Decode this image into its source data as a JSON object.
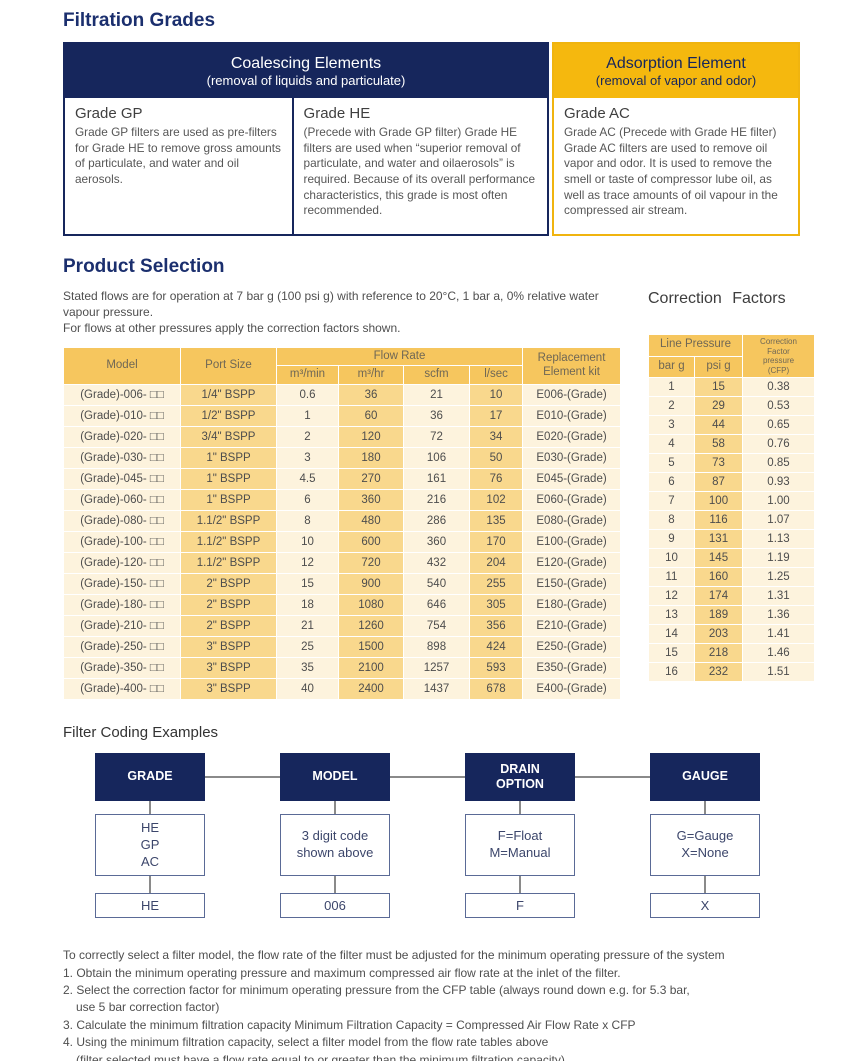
{
  "titles": {
    "filtration": "Filtration Grades",
    "product_selection": "Product Selection",
    "correction_factors": "Correction Factors",
    "filter_coding": "Filter Coding Examples"
  },
  "colors": {
    "navy": "#16265c",
    "gold": "#f5b80e",
    "table_header_gold": "#f6c65e",
    "stripe_light": "#fdf3dd",
    "stripe_gold": "#f9d88d"
  },
  "grades_table": {
    "coalescing": {
      "title": "Coalescing Elements",
      "subtitle": "(removal of liquids and particulate)"
    },
    "adsorption": {
      "title": "Adsorption Element",
      "subtitle": "(removal of vapor and odor)"
    },
    "cells": [
      {
        "name": "Grade GP",
        "text": "Grade GP filters are used as pre-filters for Grade HE to remove gross amounts of particulate, and water and oil aerosols."
      },
      {
        "name": "Grade HE",
        "text": "(Precede with Grade GP filter) Grade HE filters are used when “superior removal of particulate, and water and oilaerosols” is required. Because of its overall performance characteristics, this grade is most often recommended."
      },
      {
        "name": "Grade AC",
        "text": "Grade AC (Precede with Grade HE filter) Grade AC filters are used to remove oil vapor and odor. It is used to remove the smell or taste of compressor lube oil, as well as trace amounts of oil vapour in the compressed air stream."
      }
    ]
  },
  "product_selection": {
    "intro": "Stated flows are for operation at 7 bar g (100 psi g) with reference to 20°C, 1 bar a, 0% relative water vapour pressure.",
    "intro2": "For flows at other pressures apply the correction factors shown."
  },
  "flow_table": {
    "col_model": "Model",
    "col_port": "Port Size",
    "col_flow": "Flow Rate",
    "col_replacement": "Replacement\nElement kit",
    "flow_units": [
      "m³/min",
      "m³/hr",
      "scfm",
      "l/sec"
    ],
    "rows": [
      [
        "(Grade)-006- □□",
        "1/4\" BSPP",
        "0.6",
        "36",
        "21",
        "10",
        "E006-(Grade)"
      ],
      [
        "(Grade)-010- □□",
        "1/2\" BSPP",
        "1",
        "60",
        "36",
        "17",
        "E010-(Grade)"
      ],
      [
        "(Grade)-020- □□",
        "3/4\" BSPP",
        "2",
        "120",
        "72",
        "34",
        "E020-(Grade)"
      ],
      [
        "(Grade)-030- □□",
        "1\" BSPP",
        "3",
        "180",
        "106",
        "50",
        "E030-(Grade)"
      ],
      [
        "(Grade)-045- □□",
        "1\" BSPP",
        "4.5",
        "270",
        "161",
        "76",
        "E045-(Grade)"
      ],
      [
        "(Grade)-060- □□",
        "1\" BSPP",
        "6",
        "360",
        "216",
        "102",
        "E060-(Grade)"
      ],
      [
        "(Grade)-080- □□",
        "1.1/2\" BSPP",
        "8",
        "480",
        "286",
        "135",
        "E080-(Grade)"
      ],
      [
        "(Grade)-100- □□",
        "1.1/2\" BSPP",
        "10",
        "600",
        "360",
        "170",
        "E100-(Grade)"
      ],
      [
        "(Grade)-120- □□",
        "1.1/2\" BSPP",
        "12",
        "720",
        "432",
        "204",
        "E120-(Grade)"
      ],
      [
        "(Grade)-150- □□",
        "2\" BSPP",
        "15",
        "900",
        "540",
        "255",
        "E150-(Grade)"
      ],
      [
        "(Grade)-180- □□",
        "2\" BSPP",
        "18",
        "1080",
        "646",
        "305",
        "E180-(Grade)"
      ],
      [
        "(Grade)-210- □□",
        "2\" BSPP",
        "21",
        "1260",
        "754",
        "356",
        "E210-(Grade)"
      ],
      [
        "(Grade)-250- □□",
        "3\" BSPP",
        "25",
        "1500",
        "898",
        "424",
        "E250-(Grade)"
      ],
      [
        "(Grade)-350- □□",
        "3\" BSPP",
        "35",
        "2100",
        "1257",
        "593",
        "E350-(Grade)"
      ],
      [
        "(Grade)-400- □□",
        "3\" BSPP",
        "40",
        "2400",
        "1437",
        "678",
        "E400-(Grade)"
      ]
    ]
  },
  "correction_table": {
    "col_line_pressure": "Line Pressure",
    "col_cfp": "Correction\nFactor\npressure\n(CFP)",
    "sub_cols": [
      "bar g",
      "psi g"
    ],
    "rows": [
      [
        "1",
        "15",
        "0.38"
      ],
      [
        "2",
        "29",
        "0.53"
      ],
      [
        "3",
        "44",
        "0.65"
      ],
      [
        "4",
        "58",
        "0.76"
      ],
      [
        "5",
        "73",
        "0.85"
      ],
      [
        "6",
        "87",
        "0.93"
      ],
      [
        "7",
        "100",
        "1.00"
      ],
      [
        "8",
        "116",
        "1.07"
      ],
      [
        "9",
        "131",
        "1.13"
      ],
      [
        "10",
        "145",
        "1.19"
      ],
      [
        "11",
        "160",
        "1.25"
      ],
      [
        "12",
        "174",
        "1.31"
      ],
      [
        "13",
        "189",
        "1.36"
      ],
      [
        "14",
        "203",
        "1.41"
      ],
      [
        "15",
        "218",
        "1.46"
      ],
      [
        "16",
        "232",
        "1.51"
      ]
    ]
  },
  "coding": {
    "columns": [
      {
        "header": "GRADE",
        "options": "HE\nGP\nAC",
        "value": "HE"
      },
      {
        "header": "MODEL",
        "options": "3 digit code\nshown above",
        "value": "006"
      },
      {
        "header": "DRAIN\nOPTION",
        "options": "F=Float\nM=Manual",
        "value": "F"
      },
      {
        "header": "GAUGE",
        "options": "G=Gauge\nX=None",
        "value": "X"
      }
    ]
  },
  "instructions": [
    {
      "text": "To correctly select a filter model, the flow rate of the filter must be adjusted for the minimum operating pressure of the system",
      "indent": false
    },
    {
      "text": "1. Obtain the minimum operating pressure and maximum compressed air flow rate at the inlet of the filter.",
      "indent": false
    },
    {
      "text": "2. Select the correction factor for minimum operating pressure from the CFP table (always round down e.g. for 5.3 bar,",
      "indent": false
    },
    {
      "text": "use 5 bar correction factor)",
      "indent": true
    },
    {
      "text": "3. Calculate the minimum filtration capacity Minimum Filtration Capacity = Compressed Air Flow Rate x CFP",
      "indent": false
    },
    {
      "text": "4. Using the minimum filtration capacity, select a filter model from the flow rate tables above",
      "indent": false
    },
    {
      "text": "(filter selected must have a flow rate equal to or greater than the minimum filtration capacity)",
      "indent": true
    }
  ]
}
